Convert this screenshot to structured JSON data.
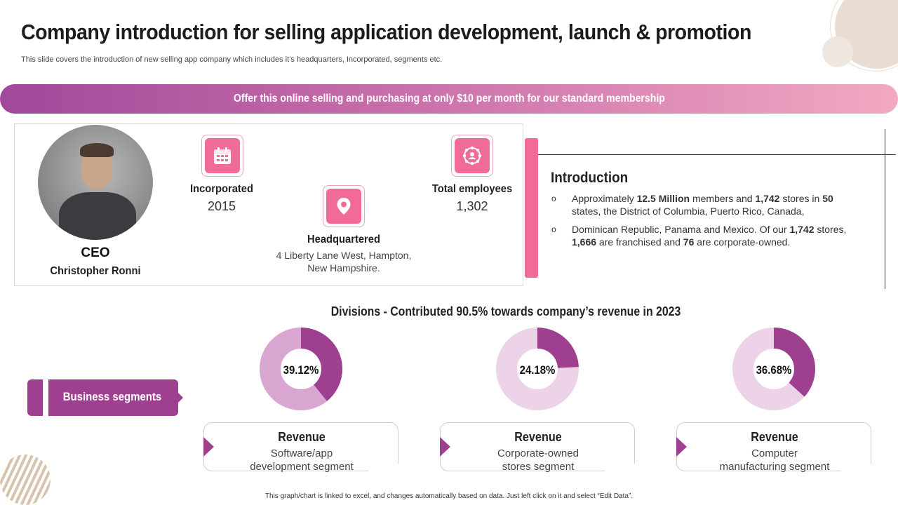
{
  "title": "Company introduction for selling application development, launch & promotion",
  "subtitle": "This slide covers the introduction of new selling app company which includes it’s headquarters, Incorporated, segments etc.",
  "banner_text": "Offer this online selling and purchasing at only $10 per month for our standard membership",
  "ceo": {
    "role": "CEO",
    "name": "Christopher Ronni"
  },
  "stats": {
    "incorporated": {
      "label": "Incorporated",
      "value": "2015",
      "icon": "calendar-icon"
    },
    "headquartered": {
      "label": "Headquartered",
      "line1": "4 Liberty Lane West, Hampton,",
      "line2": "New Hampshire.",
      "icon": "location-pin-icon"
    },
    "employees": {
      "label": "Total employees",
      "value": "1,302",
      "icon": "team-network-icon"
    }
  },
  "introduction": {
    "title": "Introduction",
    "items": [
      {
        "parts": [
          "Approximately ",
          "12.5 Million",
          " members and ",
          "1,742",
          " stores in ",
          "50",
          " states, the District of Columbia, Puerto Rico, Canada,"
        ]
      },
      {
        "parts": [
          "Dominican Republic, Panama and Mexico. Of our ",
          "1,742",
          " stores, ",
          "1,666",
          " are franchised and ",
          "76",
          " are corporate-owned."
        ]
      }
    ]
  },
  "divisions_title": "Divisions  - Contributed 90.5% towards company’s revenue in 2023",
  "segments_label": "Business segments",
  "chart_data": {
    "type": "donut",
    "charts": [
      {
        "value": 39.12,
        "label": "39.12%",
        "revenue_title": "Revenue",
        "desc_line1": "Software/app",
        "desc_line2": "development segment"
      },
      {
        "value": 24.18,
        "label": "24.18%",
        "revenue_title": "Revenue",
        "desc_line1": "Corporate-owned",
        "desc_line2": "stores segment"
      },
      {
        "value": 36.68,
        "label": "36.68%",
        "revenue_title": "Revenue",
        "desc_line1": "Computer",
        "desc_line2": "manufacturing segment"
      }
    ]
  },
  "colors": {
    "accent_purple": "#9e3f8f",
    "accent_pink": "#f06c97",
    "donut_light_1": "#d9a6d2",
    "donut_light_2": "#ecd3e8"
  },
  "footnote": "This graph/chart is linked to excel, and changes automatically based on data. Just left click on it and select “Edit Data”."
}
